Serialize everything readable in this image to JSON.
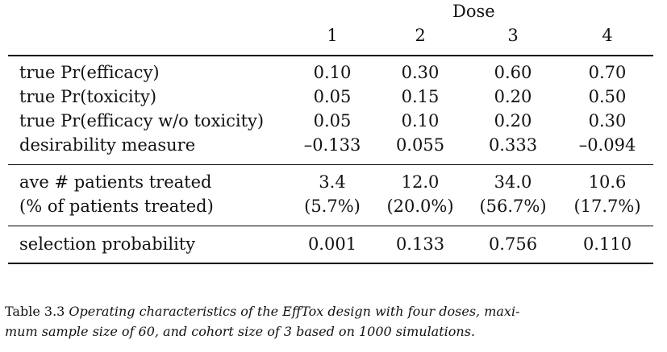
{
  "header": {
    "group_label": "Dose",
    "doses": [
      "1",
      "2",
      "3",
      "4"
    ]
  },
  "rows": [
    {
      "label": "true Pr(efficacy)",
      "values": [
        "0.10",
        "0.30",
        "0.60",
        "0.70"
      ]
    },
    {
      "label": "true Pr(toxicity)",
      "values": [
        "0.05",
        "0.15",
        "0.20",
        "0.50"
      ]
    },
    {
      "label": "true Pr(efficacy w/o toxicity)",
      "values": [
        "0.05",
        "0.10",
        "0.20",
        "0.30"
      ]
    },
    {
      "label": "desirability measure",
      "values": [
        "–0.133",
        "0.055",
        "0.333",
        "–0.094"
      ]
    },
    {
      "label": "ave # patients treated",
      "values": [
        "3.4",
        "12.0",
        "34.0",
        "10.6"
      ]
    },
    {
      "label": "(% of patients treated)",
      "values": [
        "(5.7%)",
        "(20.0%)",
        "(56.7%)",
        "(17.7%)"
      ]
    },
    {
      "label": "selection probability",
      "values": [
        "0.001",
        "0.133",
        "0.756",
        "0.110"
      ]
    }
  ],
  "caption": {
    "prefix": "Table 3.3",
    "text": "Operating characteristics of the EffTox design with four doses, maximum sample size of 60, and cohort size of 3 based on 1000 simulations.",
    "line1": "Operating characteristics of the EffTox design with four doses, maxi-",
    "line2": "mum sample size of 60, and cohort size of 3 based on 1000 simulations."
  }
}
